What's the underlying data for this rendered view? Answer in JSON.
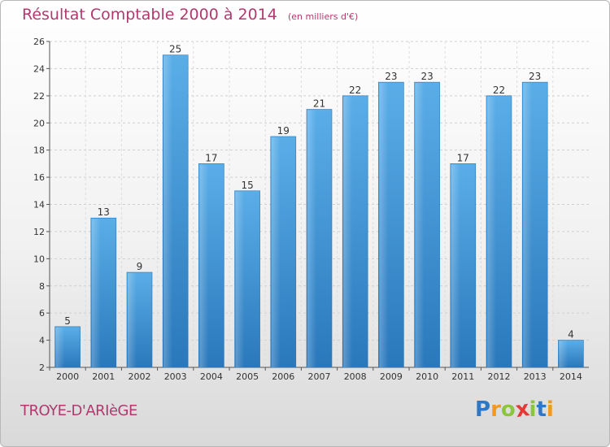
{
  "chart_data": {
    "type": "bar",
    "title": "Résultat Comptable 2000 à 2014",
    "subtitle": "(en milliers d'€)",
    "categories": [
      "2000",
      "2001",
      "2002",
      "2003",
      "2004",
      "2005",
      "2006",
      "2007",
      "2008",
      "2009",
      "2010",
      "2011",
      "2012",
      "2013",
      "2014"
    ],
    "values": [
      5,
      13,
      9,
      25,
      17,
      15,
      19,
      21,
      22,
      23,
      23,
      17,
      22,
      23,
      4
    ],
    "ylim": [
      2,
      26
    ],
    "yticks": [
      2,
      4,
      6,
      8,
      10,
      12,
      14,
      16,
      18,
      20,
      22,
      24,
      26
    ],
    "grid": true,
    "bar_color": "#3a8fd6"
  },
  "commune_name": "TROYE-D'ARIèGE",
  "logo": {
    "letters": [
      "P",
      "r",
      "o",
      "x",
      "i",
      "t",
      "i"
    ],
    "colors": [
      "#2e78c7",
      "#f29a1d",
      "#8cc63f",
      "#e53935",
      "#8cc63f",
      "#2e78c7",
      "#f29a1d"
    ]
  }
}
